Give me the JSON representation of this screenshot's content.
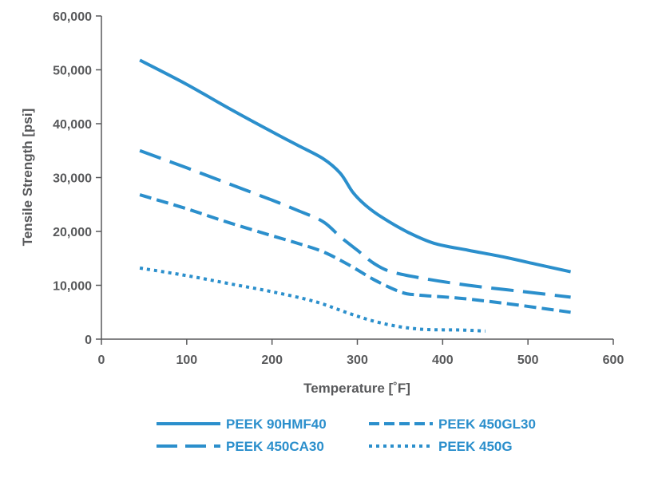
{
  "chart_data": {
    "type": "line",
    "title": "",
    "xlabel": "Temperature [˚F]",
    "ylabel": "Tensile Strength [psi]",
    "xlim": [
      0,
      600
    ],
    "ylim": [
      0,
      60000
    ],
    "xticks": [
      0,
      100,
      200,
      300,
      400,
      500,
      600
    ],
    "yticks": [
      0,
      10000,
      20000,
      30000,
      40000,
      50000,
      60000
    ],
    "xtick_labels": [
      "0",
      "100",
      "200",
      "300",
      "400",
      "500",
      "600"
    ],
    "ytick_labels": [
      "0",
      "10,000",
      "20,000",
      "30,000",
      "40,000",
      "50,000",
      "60,000"
    ],
    "grid": false,
    "legend_position": "bottom",
    "line_color": "#2b8fcc",
    "series": [
      {
        "name": "PEEK 90HMF40",
        "style": "solid",
        "points": [
          [
            45,
            51800
          ],
          [
            100,
            47300
          ],
          [
            150,
            42800
          ],
          [
            200,
            38500
          ],
          [
            230,
            36000
          ],
          [
            260,
            33500
          ],
          [
            280,
            30800
          ],
          [
            295,
            27200
          ],
          [
            310,
            24800
          ],
          [
            330,
            22500
          ],
          [
            360,
            19800
          ],
          [
            390,
            17800
          ],
          [
            430,
            16500
          ],
          [
            470,
            15300
          ],
          [
            510,
            13900
          ],
          [
            550,
            12500
          ]
        ]
      },
      {
        "name": "PEEK 450CA30",
        "style": "dashed",
        "points": [
          [
            45,
            35000
          ],
          [
            100,
            31800
          ],
          [
            150,
            28800
          ],
          [
            200,
            25800
          ],
          [
            230,
            23900
          ],
          [
            260,
            21800
          ],
          [
            280,
            19000
          ],
          [
            300,
            16500
          ],
          [
            320,
            14000
          ],
          [
            340,
            12500
          ],
          [
            380,
            11200
          ],
          [
            430,
            10000
          ],
          [
            490,
            8900
          ],
          [
            550,
            7800
          ]
        ]
      },
      {
        "name": "PEEK 450GL30",
        "style": "dashed",
        "points": [
          [
            45,
            26800
          ],
          [
            100,
            24200
          ],
          [
            150,
            21600
          ],
          [
            200,
            19200
          ],
          [
            230,
            17800
          ],
          [
            260,
            16200
          ],
          [
            290,
            13800
          ],
          [
            320,
            11000
          ],
          [
            350,
            8800
          ],
          [
            370,
            8200
          ],
          [
            420,
            7600
          ],
          [
            480,
            6500
          ],
          [
            550,
            5000
          ]
        ]
      },
      {
        "name": "PEEK 450G",
        "style": "dotted",
        "points": [
          [
            45,
            13200
          ],
          [
            100,
            11800
          ],
          [
            150,
            10300
          ],
          [
            200,
            8800
          ],
          [
            250,
            7000
          ],
          [
            290,
            4800
          ],
          [
            320,
            3300
          ],
          [
            350,
            2300
          ],
          [
            380,
            1800
          ],
          [
            420,
            1700
          ],
          [
            450,
            1500
          ]
        ]
      }
    ],
    "legend": [
      {
        "name": "PEEK 90HMF40",
        "style": "solid"
      },
      {
        "name": "PEEK 450GL30",
        "style": "dashed-short"
      },
      {
        "name": "PEEK 450CA30",
        "style": "dashed-long"
      },
      {
        "name": "PEEK 450G",
        "style": "dotted"
      }
    ]
  }
}
